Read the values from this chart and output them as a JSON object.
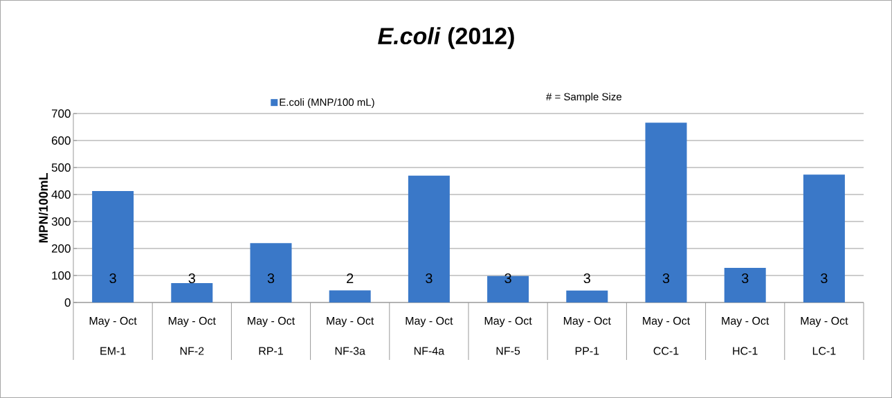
{
  "chart_data": {
    "type": "bar",
    "title": "*E.coli* (2012)",
    "ylabel": "MPN/100mL",
    "categories": [
      "EM-1",
      "NF-2",
      "RP-1",
      "NF-3a",
      "NF-4a",
      "NF-5",
      "PP-1",
      "CC-1",
      "HC-1",
      "LC-1"
    ],
    "series": [
      {
        "name": "E.coli (MNP/100 mL)",
        "color": "#3a78c8",
        "values": [
          413,
          72,
          220,
          45,
          470,
          98,
          44,
          666,
          128,
          474
        ]
      }
    ],
    "ylim": [
      0,
      700
    ],
    "yticks": [
      0,
      100,
      200,
      300,
      400,
      500,
      600,
      700
    ],
    "grid": "y",
    "legend": "top",
    "annotations": [
      "3",
      "3",
      "3",
      "2",
      "3",
      "3",
      "3",
      "3",
      "3",
      "3",
      "May - Oct",
      "May - Oct",
      "May - Oct",
      "May - Oct",
      "May - Oct",
      "May - Oct",
      "May - Oct",
      "May - Oct",
      "May - Oct",
      "May - Oct",
      "# = Sample Size"
    ]
  }
}
